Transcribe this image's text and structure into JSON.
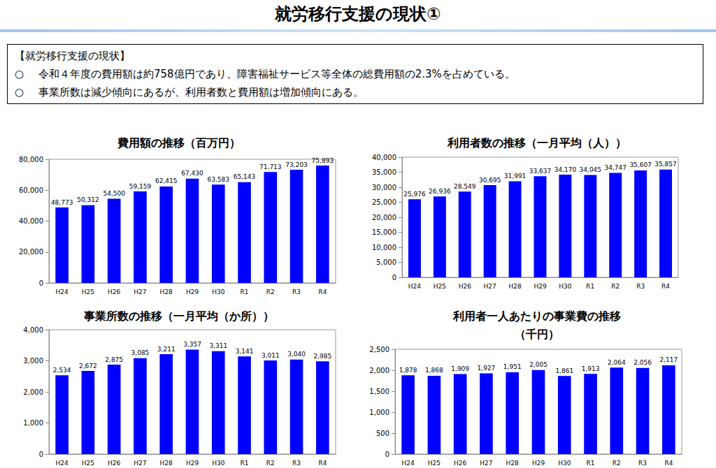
{
  "header": {
    "title": "就労移行支援の現状①"
  },
  "summary": {
    "heading": "【就労移行支援の現状】",
    "bullet": "○",
    "items": [
      "令和４年度の費用額は約758億円であり、障害福祉サービス等全体の総費用額の2.3%を占めている。",
      "事業所数は減少傾向にあるが、利用者数と費用額は増加傾向にある。"
    ]
  },
  "chart_data": [
    {
      "type": "bar",
      "title": "費用額の推移（百万円）",
      "categories": [
        "H24",
        "H25",
        "H26",
        "H27",
        "H28",
        "H29",
        "H30",
        "R1",
        "R2",
        "R3",
        "R4"
      ],
      "values": [
        48773,
        50312,
        54500,
        59159,
        62415,
        67430,
        63583,
        65143,
        71713,
        73203,
        75893
      ],
      "value_labels": [
        "48,773",
        "50,312",
        "54,500",
        "59,159",
        "62,415",
        "67,430",
        "63,583",
        "65,143",
        "71,713",
        "73,203",
        "75,893"
      ],
      "color": "#0000ff",
      "ylim": [
        0,
        80000
      ],
      "yticks": [
        0,
        {
          "value": 20000,
          "label": "20,000"
        },
        {
          "value": 40000,
          "label": "40,000"
        },
        {
          "value": 60000,
          "label": "60,000"
        },
        {
          "value": 80000,
          "label": "80,000"
        }
      ],
      "grid": false,
      "data_labels": true
    },
    {
      "type": "bar",
      "title": "利用者数の推移（一月平均（人））",
      "categories": [
        "H24",
        "H25",
        "H26",
        "H27",
        "H28",
        "H29",
        "H30",
        "R1",
        "R2",
        "R3",
        "R4"
      ],
      "values": [
        25976,
        26936,
        28549,
        30695,
        31991,
        33637,
        34170,
        34045,
        34747,
        35607,
        35857
      ],
      "value_labels": [
        "25,976",
        "26,936",
        "28,549",
        "30,695",
        "31,991",
        "33,637",
        "34,170",
        "34,045",
        "34,747",
        "35,607",
        "35,857"
      ],
      "color": "#0000ff",
      "ylim": [
        0,
        40000
      ],
      "yticks": [
        0,
        {
          "value": 5000,
          "label": "5,000"
        },
        {
          "value": 10000,
          "label": "10,000"
        },
        {
          "value": 15000,
          "label": "15,000"
        },
        {
          "value": 20000,
          "label": "20,000"
        },
        {
          "value": 25000,
          "label": "25,000"
        },
        {
          "value": 30000,
          "label": "30,000"
        },
        {
          "value": 35000,
          "label": "35,000"
        },
        {
          "value": 40000,
          "label": "40,000"
        }
      ],
      "grid": false,
      "data_labels": true
    },
    {
      "type": "bar",
      "title": "事業所数の推移（一月平均（か所））",
      "categories": [
        "H24",
        "H25",
        "H26",
        "H27",
        "H28",
        "H29",
        "H30",
        "R1",
        "R2",
        "R3",
        "R4"
      ],
      "values": [
        2534,
        2672,
        2875,
        3085,
        3211,
        3357,
        3311,
        3141,
        3011,
        3040,
        2985
      ],
      "value_labels": [
        "2,534",
        "2,672",
        "2,875",
        "3,085",
        "3,211",
        "3,357",
        "3,311",
        "3,141",
        "3,011",
        "3,040",
        "2,985"
      ],
      "color": "#0000ff",
      "ylim": [
        0,
        4000
      ],
      "yticks": [
        0,
        {
          "value": 1000,
          "label": "1,000"
        },
        {
          "value": 2000,
          "label": "2,000"
        },
        {
          "value": 3000,
          "label": "3,000"
        },
        {
          "value": 4000,
          "label": "4,000"
        }
      ],
      "grid": false,
      "data_labels": true
    },
    {
      "type": "bar",
      "title": "利用者一人あたりの事業費の推移\n（千円）",
      "categories": [
        "H24",
        "H25",
        "H26",
        "H27",
        "H28",
        "H29",
        "H30",
        "R1",
        "R2",
        "R3",
        "R4"
      ],
      "values": [
        1878,
        1868,
        1909,
        1927,
        1951,
        2005,
        1861,
        1913,
        2064,
        2056,
        2117
      ],
      "value_labels": [
        "1,878",
        "1,868",
        "1,909",
        "1,927",
        "1,951",
        "2,005",
        "1,861",
        "1,913",
        "2,064",
        "2,056",
        "2,117"
      ],
      "color": "#0000ff",
      "ylim": [
        0,
        2500
      ],
      "yticks": [
        0,
        500,
        {
          "value": 1000,
          "label": "1,000"
        },
        {
          "value": 1500,
          "label": "1,500"
        },
        {
          "value": 2000,
          "label": "2,000"
        },
        {
          "value": 2500,
          "label": "2,500"
        }
      ],
      "grid": false,
      "data_labels": true
    }
  ]
}
